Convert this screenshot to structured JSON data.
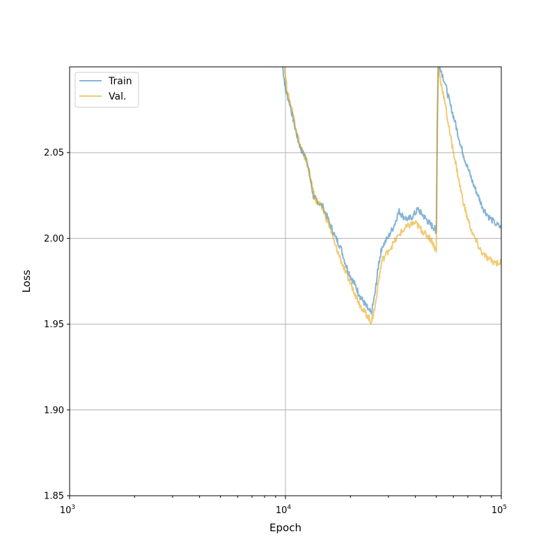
{
  "chart_data": {
    "type": "line",
    "xlabel": "Epoch",
    "ylabel": "Loss",
    "xscale": "log",
    "xlim": [
      1000,
      100000
    ],
    "ylim": [
      1.85,
      2.1
    ],
    "x_ticks": [
      {
        "value": 1000,
        "base": "10",
        "exp": "3"
      },
      {
        "value": 10000,
        "base": "10",
        "exp": "4"
      },
      {
        "value": 100000,
        "base": "10",
        "exp": "5"
      }
    ],
    "y_ticks": [
      {
        "value": 1.85,
        "label": "1.85"
      },
      {
        "value": 1.9,
        "label": "1.90"
      },
      {
        "value": 1.95,
        "label": "1.95"
      },
      {
        "value": 2.0,
        "label": "2.00"
      },
      {
        "value": 2.05,
        "label": "2.05"
      }
    ],
    "grid": true,
    "legend": "top-left",
    "series": [
      {
        "name": "Train",
        "color": "#1f77b4",
        "points": [
          [
            9700,
            2.1
          ],
          [
            10000,
            2.087
          ],
          [
            10500,
            2.078
          ],
          [
            11000,
            2.066
          ],
          [
            11500,
            2.056
          ],
          [
            12000,
            2.05
          ],
          [
            12500,
            2.047
          ],
          [
            13000,
            2.035
          ],
          [
            13500,
            2.024
          ],
          [
            14000,
            2.022
          ],
          [
            15000,
            2.018
          ],
          [
            16000,
            2.009
          ],
          [
            17000,
            2.001
          ],
          [
            18000,
            1.995
          ],
          [
            19000,
            1.985
          ],
          [
            20000,
            1.978
          ],
          [
            21000,
            1.973
          ],
          [
            22000,
            1.967
          ],
          [
            23000,
            1.963
          ],
          [
            24000,
            1.959
          ],
          [
            25000,
            1.956
          ],
          [
            26000,
            1.968
          ],
          [
            27000,
            1.985
          ],
          [
            28000,
            1.995
          ],
          [
            30000,
            2.001
          ],
          [
            32000,
            2.008
          ],
          [
            33500,
            2.016
          ],
          [
            35000,
            2.013
          ],
          [
            37000,
            2.011
          ],
          [
            39000,
            2.013
          ],
          [
            41000,
            2.017
          ],
          [
            43000,
            2.014
          ],
          [
            45000,
            2.011
          ],
          [
            47000,
            2.008
          ],
          [
            49000,
            2.006
          ],
          [
            50000,
            2.004
          ],
          [
            50500,
            2.068
          ],
          [
            51000,
            2.1
          ],
          [
            52000,
            2.1
          ],
          [
            55000,
            2.09
          ],
          [
            58000,
            2.078
          ],
          [
            61000,
            2.068
          ],
          [
            64000,
            2.057
          ],
          [
            67000,
            2.048
          ],
          [
            70000,
            2.041
          ],
          [
            74000,
            2.032
          ],
          [
            78000,
            2.025
          ],
          [
            82000,
            2.018
          ],
          [
            87000,
            2.013
          ],
          [
            93000,
            2.009
          ],
          [
            100000,
            2.006
          ]
        ]
      },
      {
        "name": "Val.",
        "color": "#e69f00",
        "points": [
          [
            9900,
            2.1
          ],
          [
            10200,
            2.085
          ],
          [
            10700,
            2.076
          ],
          [
            11200,
            2.064
          ],
          [
            11700,
            2.054
          ],
          [
            12200,
            2.048
          ],
          [
            12700,
            2.043
          ],
          [
            13200,
            2.032
          ],
          [
            13700,
            2.023
          ],
          [
            14200,
            2.021
          ],
          [
            15000,
            2.016
          ],
          [
            16000,
            2.007
          ],
          [
            17000,
            1.996
          ],
          [
            18000,
            1.988
          ],
          [
            19000,
            1.98
          ],
          [
            20000,
            1.974
          ],
          [
            21000,
            1.968
          ],
          [
            22000,
            1.962
          ],
          [
            23000,
            1.958
          ],
          [
            24000,
            1.955
          ],
          [
            25000,
            1.951
          ],
          [
            26000,
            1.96
          ],
          [
            27000,
            1.975
          ],
          [
            28000,
            1.987
          ],
          [
            30000,
            1.993
          ],
          [
            32000,
            1.998
          ],
          [
            34000,
            2.003
          ],
          [
            36000,
            2.006
          ],
          [
            38000,
            2.008
          ],
          [
            40000,
            2.009
          ],
          [
            42000,
            2.006
          ],
          [
            44000,
            2.003
          ],
          [
            46000,
            2.001
          ],
          [
            48000,
            1.998
          ],
          [
            50000,
            1.992
          ],
          [
            50500,
            2.055
          ],
          [
            51000,
            2.1
          ],
          [
            52000,
            2.094
          ],
          [
            55000,
            2.078
          ],
          [
            58000,
            2.06
          ],
          [
            61000,
            2.046
          ],
          [
            64000,
            2.032
          ],
          [
            67000,
            2.02
          ],
          [
            70000,
            2.011
          ],
          [
            74000,
            2.002
          ],
          [
            78000,
            1.996
          ],
          [
            82000,
            1.991
          ],
          [
            87000,
            1.988
          ],
          [
            93000,
            1.986
          ],
          [
            100000,
            1.986
          ]
        ]
      }
    ]
  }
}
